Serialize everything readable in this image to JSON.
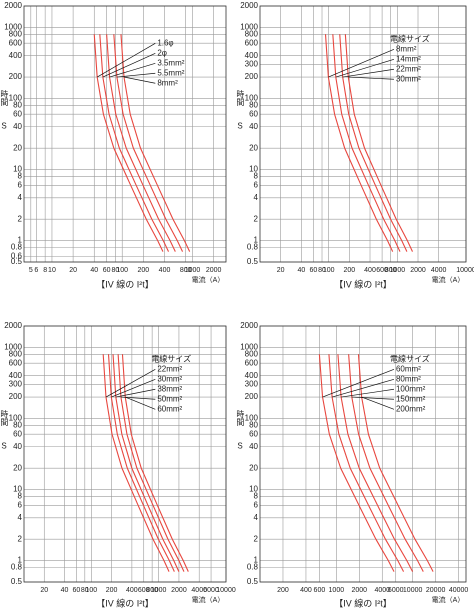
{
  "chart_data": [
    {
      "type": "line",
      "log_x": true,
      "log_y": true,
      "grid": true,
      "xlabel": "電流（A）",
      "ylabel": "時間",
      "yunit": "S",
      "caption": "【IV 線の I²t】",
      "xlim": [
        4,
        3000
      ],
      "xticks": [
        5,
        6,
        8,
        10,
        20,
        40,
        60,
        80,
        100,
        200,
        400,
        800,
        1000,
        2000
      ],
      "ylim": [
        0.5,
        2000
      ],
      "yticks": [
        0.5,
        0.6,
        0.8,
        1,
        2,
        4,
        6,
        8,
        10,
        20,
        40,
        60,
        80,
        100,
        200,
        400,
        600,
        800,
        1000,
        2000
      ],
      "series": [
        {
          "name": "1.6φ",
          "color": "#e8473f",
          "x": [
            40,
            44,
            54,
            76,
            132,
            220,
            320,
            380
          ],
          "values": [
            800,
            200,
            60,
            20,
            6,
            2,
            1,
            0.7
          ]
        },
        {
          "name": "2φ",
          "color": "#e8473f",
          "x": [
            48,
            53,
            65,
            91,
            158,
            264,
            384,
            456
          ],
          "values": [
            800,
            200,
            60,
            20,
            6,
            2,
            1,
            0.7
          ]
        },
        {
          "name": "3.5mm²",
          "color": "#e8473f",
          "x": [
            60,
            66,
            81,
            114,
            198,
            330,
            480,
            570
          ],
          "values": [
            800,
            200,
            60,
            20,
            6,
            2,
            1,
            0.7
          ]
        },
        {
          "name": "5.5mm²",
          "color": "#e8473f",
          "x": [
            76,
            84,
            103,
            144,
            251,
            418,
            608,
            722
          ],
          "values": [
            800,
            200,
            60,
            20,
            6,
            2,
            1,
            0.7
          ]
        },
        {
          "name": "8mm²",
          "color": "#e8473f",
          "x": [
            96,
            106,
            130,
            182,
            317,
            528,
            768,
            912
          ],
          "values": [
            800,
            200,
            60,
            20,
            6,
            2,
            1,
            0.7
          ]
        }
      ]
    },
    {
      "type": "line",
      "log_x": true,
      "log_y": true,
      "grid": true,
      "xlabel": "電流（A）",
      "ylabel": "時間",
      "yunit": "S",
      "caption": "【IV 線の I²t】",
      "legend_title": "電線サイズ",
      "xlim": [
        10,
        10000
      ],
      "xticks": [
        20,
        40,
        60,
        80,
        100,
        200,
        400,
        600,
        800,
        1000,
        2000,
        4000,
        10000
      ],
      "ylim": [
        0.5,
        2000
      ],
      "yticks": [
        0.5,
        0.8,
        1,
        2,
        4,
        6,
        8,
        10,
        20,
        40,
        60,
        80,
        100,
        200,
        300,
        400,
        600,
        800,
        1000,
        2000
      ],
      "series": [
        {
          "name": "8mm²",
          "color": "#e8473f",
          "x": [
            90,
            99,
            122,
            171,
            297,
            495,
            720,
            855
          ],
          "values": [
            800,
            200,
            60,
            20,
            6,
            2,
            1,
            0.7
          ]
        },
        {
          "name": "14mm²",
          "color": "#e8473f",
          "x": [
            115,
            127,
            155,
            219,
            380,
            633,
            920,
            1093
          ],
          "values": [
            800,
            200,
            60,
            20,
            6,
            2,
            1,
            0.7
          ]
        },
        {
          "name": "22mm²",
          "color": "#e8473f",
          "x": [
            145,
            160,
            196,
            276,
            479,
            798,
            1160,
            1378
          ],
          "values": [
            800,
            200,
            60,
            20,
            6,
            2,
            1,
            0.7
          ]
        },
        {
          "name": "30mm²",
          "color": "#e8473f",
          "x": [
            175,
            193,
            236,
            333,
            578,
            963,
            1400,
            1663
          ],
          "values": [
            800,
            200,
            60,
            20,
            6,
            2,
            1,
            0.7
          ]
        }
      ]
    },
    {
      "type": "line",
      "log_x": true,
      "log_y": true,
      "grid": true,
      "xlabel": "電流（A）",
      "ylabel": "時間",
      "yunit": "S",
      "caption": "【IV 線の I²t】",
      "legend_title": "電線サイズ",
      "xlim": [
        10,
        10000
      ],
      "xticks": [
        20,
        40,
        60,
        80,
        100,
        200,
        400,
        600,
        800,
        1000,
        2000,
        4000,
        6000,
        10000
      ],
      "ylim": [
        0.5,
        2000
      ],
      "yticks": [
        0.5,
        0.8,
        1,
        2,
        4,
        6,
        8,
        10,
        20,
        40,
        60,
        80,
        100,
        200,
        300,
        400,
        600,
        800,
        1000,
        2000
      ],
      "series": [
        {
          "name": "22mm²",
          "color": "#e8473f",
          "x": [
            150,
            165,
            203,
            285,
            495,
            825,
            1200,
            1425
          ],
          "values": [
            800,
            200,
            60,
            20,
            6,
            2,
            1,
            0.7
          ]
        },
        {
          "name": "30mm²",
          "color": "#e8473f",
          "x": [
            180,
            198,
            243,
            342,
            594,
            990,
            1440,
            1710
          ],
          "values": [
            800,
            200,
            60,
            20,
            6,
            2,
            1,
            0.7
          ]
        },
        {
          "name": "38mm²",
          "color": "#e8473f",
          "x": [
            210,
            231,
            284,
            399,
            693,
            1155,
            1680,
            1995
          ],
          "values": [
            800,
            200,
            60,
            20,
            6,
            2,
            1,
            0.7
          ]
        },
        {
          "name": "50mm²",
          "color": "#e8473f",
          "x": [
            250,
            275,
            338,
            475,
            825,
            1375,
            2000,
            2375
          ],
          "values": [
            800,
            200,
            60,
            20,
            6,
            2,
            1,
            0.7
          ]
        },
        {
          "name": "60mm²",
          "color": "#e8473f",
          "x": [
            290,
            319,
            392,
            551,
            957,
            1595,
            2320,
            2755
          ],
          "values": [
            800,
            200,
            60,
            20,
            6,
            2,
            1,
            0.7
          ]
        }
      ]
    },
    {
      "type": "line",
      "log_x": true,
      "log_y": true,
      "grid": true,
      "xlabel": "電流（A）",
      "ylabel": "時間",
      "yunit": "S",
      "caption": "【IV 線の I²t】",
      "legend_title": "電線サイズ",
      "xlim": [
        100,
        50000
      ],
      "xticks": [
        200,
        400,
        600,
        1000,
        2000,
        4000,
        6000,
        10000,
        20000,
        40000
      ],
      "ylim": [
        0.5,
        2000
      ],
      "yticks": [
        0.5,
        0.8,
        1,
        2,
        4,
        6,
        8,
        10,
        20,
        40,
        60,
        80,
        100,
        200,
        300,
        400,
        600,
        800,
        1000,
        2000
      ],
      "series": [
        {
          "name": "60mm²",
          "color": "#e8473f",
          "x": [
            600,
            660,
            810,
            1140,
            1980,
            3300,
            4800,
            5700
          ],
          "values": [
            800,
            200,
            60,
            20,
            6,
            2,
            1,
            0.7
          ]
        },
        {
          "name": "80mm²",
          "color": "#e8473f",
          "x": [
            800,
            880,
            1080,
            1520,
            2640,
            4400,
            6400,
            7600
          ],
          "values": [
            800,
            200,
            60,
            20,
            6,
            2,
            1,
            0.7
          ]
        },
        {
          "name": "100mm²",
          "color": "#e8473f",
          "x": [
            1050,
            1155,
            1418,
            1995,
            3465,
            5775,
            8400,
            9975
          ],
          "values": [
            800,
            200,
            60,
            20,
            6,
            2,
            1,
            0.7
          ]
        },
        {
          "name": "150mm²",
          "color": "#e8473f",
          "x": [
            1450,
            1595,
            1958,
            2755,
            4785,
            7975,
            11600,
            13775
          ],
          "values": [
            800,
            200,
            60,
            20,
            6,
            2,
            1,
            0.7
          ]
        },
        {
          "name": "200mm²",
          "color": "#e8473f",
          "x": [
            1950,
            2145,
            2633,
            3705,
            6435,
            10725,
            15600,
            18525
          ],
          "values": [
            800,
            200,
            60,
            20,
            6,
            2,
            1,
            0.7
          ]
        }
      ]
    }
  ]
}
